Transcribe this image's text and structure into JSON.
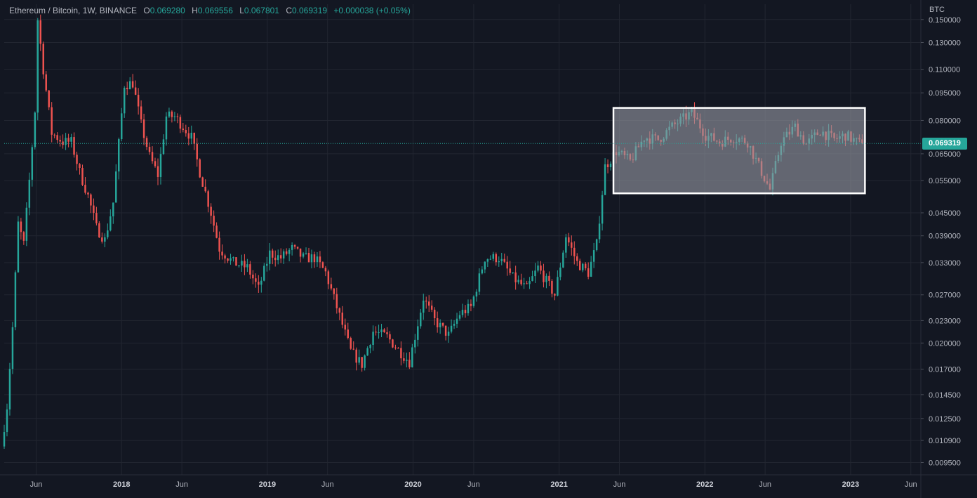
{
  "header": {
    "symbol": "Ethereum / Bitcoin, 1W, BINANCE",
    "o_label": "O",
    "o_value": "0.069280",
    "h_label": "H",
    "h_value": "0.069556",
    "l_label": "L",
    "l_value": "0.067801",
    "c_label": "C",
    "c_value": "0.069319",
    "change": "+0.000038 (+0.05%)"
  },
  "colors": {
    "background": "#131722",
    "up": "#26a69a",
    "down": "#ef5350",
    "grid": "#222631",
    "axis_text": "#b2b5be",
    "highlight_fill": "#9598a1",
    "highlight_border": "#ffffff"
  },
  "chart_data": {
    "type": "candlestick",
    "title": "Ethereum / Bitcoin, 1W, BINANCE",
    "interval": "1W",
    "exchange": "BINANCE",
    "y_unit": "BTC",
    "y_scale": "log",
    "ylim": [
      0.0088,
      0.165
    ],
    "xlim": [
      "2017-03-13",
      "2023-06-26"
    ],
    "grid": true,
    "last_price": "0.069319",
    "y_ticks": [
      "0.150000",
      "0.130000",
      "0.110000",
      "0.095000",
      "0.080000",
      "0.065000",
      "0.055000",
      "0.045000",
      "0.039000",
      "0.033000",
      "0.027000",
      "0.023000",
      "0.020000",
      "0.017000",
      "0.014500",
      "0.012500",
      "0.010900",
      "0.009500"
    ],
    "x_ticks": [
      {
        "label": "Jun",
        "date": "2017-06-01"
      },
      {
        "label": "2018",
        "date": "2018-01-01"
      },
      {
        "label": "Jun",
        "date": "2018-06-01"
      },
      {
        "label": "2019",
        "date": "2019-01-01"
      },
      {
        "label": "Jun",
        "date": "2019-06-01"
      },
      {
        "label": "2020",
        "date": "2020-01-01"
      },
      {
        "label": "Jun",
        "date": "2020-06-01"
      },
      {
        "label": "2021",
        "date": "2021-01-01"
      },
      {
        "label": "Jun",
        "date": "2021-06-01"
      },
      {
        "label": "2022",
        "date": "2022-01-01"
      },
      {
        "label": "Jun",
        "date": "2022-06-01"
      },
      {
        "label": "2023",
        "date": "2023-01-01"
      },
      {
        "label": "Jun",
        "date": "2023-06-01"
      }
    ],
    "trend_path": [
      [
        "2017-03-13",
        0.0105
      ],
      [
        "2017-03-27",
        0.0135
      ],
      [
        "2017-04-10",
        0.022
      ],
      [
        "2017-04-24",
        0.042
      ],
      [
        "2017-05-08",
        0.037
      ],
      [
        "2017-05-22",
        0.055
      ],
      [
        "2017-06-05",
        0.085
      ],
      [
        "2017-06-12",
        0.15
      ],
      [
        "2017-06-26",
        0.11
      ],
      [
        "2017-07-17",
        0.074
      ],
      [
        "2017-08-14",
        0.07
      ],
      [
        "2017-09-04",
        0.07
      ],
      [
        "2017-09-25",
        0.058
      ],
      [
        "2017-10-16",
        0.05
      ],
      [
        "2017-11-06",
        0.041
      ],
      [
        "2017-11-27",
        0.038
      ],
      [
        "2017-12-18",
        0.048
      ],
      [
        "2018-01-15",
        0.1
      ],
      [
        "2018-02-05",
        0.101
      ],
      [
        "2018-02-26",
        0.078
      ],
      [
        "2018-03-19",
        0.064
      ],
      [
        "2018-04-09",
        0.057
      ],
      [
        "2018-04-30",
        0.082
      ],
      [
        "2018-05-21",
        0.082
      ],
      [
        "2018-06-11",
        0.077
      ],
      [
        "2018-07-02",
        0.072
      ],
      [
        "2018-07-23",
        0.058
      ],
      [
        "2018-08-20",
        0.045
      ],
      [
        "2018-09-10",
        0.036
      ],
      [
        "2018-10-15",
        0.033
      ],
      [
        "2018-11-19",
        0.032
      ],
      [
        "2018-12-17",
        0.028
      ],
      [
        "2019-01-14",
        0.035
      ],
      [
        "2019-02-11",
        0.034
      ],
      [
        "2019-03-11",
        0.036
      ],
      [
        "2019-04-08",
        0.034
      ],
      [
        "2019-05-06",
        0.034
      ],
      [
        "2019-06-03",
        0.031
      ],
      [
        "2019-07-01",
        0.025
      ],
      [
        "2019-08-05",
        0.019
      ],
      [
        "2019-09-02",
        0.0175
      ],
      [
        "2019-09-30",
        0.0215
      ],
      [
        "2019-11-04",
        0.0208
      ],
      [
        "2019-12-02",
        0.0192
      ],
      [
        "2019-12-30",
        0.0178
      ],
      [
        "2020-02-03",
        0.0265
      ],
      [
        "2020-03-02",
        0.023
      ],
      [
        "2020-04-06",
        0.021
      ],
      [
        "2020-05-04",
        0.024
      ],
      [
        "2020-06-01",
        0.025
      ],
      [
        "2020-07-06",
        0.034
      ],
      [
        "2020-08-10",
        0.034
      ],
      [
        "2020-09-14",
        0.03
      ],
      [
        "2020-10-19",
        0.028
      ],
      [
        "2020-11-16",
        0.032
      ],
      [
        "2020-12-28",
        0.027
      ],
      [
        "2021-01-25",
        0.039
      ],
      [
        "2021-02-22",
        0.033
      ],
      [
        "2021-03-22",
        0.031
      ],
      [
        "2021-04-12",
        0.037
      ],
      [
        "2021-05-03",
        0.06
      ],
      [
        "2021-05-31",
        0.066
      ],
      [
        "2021-07-05",
        0.062
      ],
      [
        "2021-08-09",
        0.072
      ],
      [
        "2021-09-13",
        0.071
      ],
      [
        "2021-10-18",
        0.077
      ],
      [
        "2021-12-06",
        0.084
      ],
      [
        "2022-01-10",
        0.073
      ],
      [
        "2022-02-14",
        0.07
      ],
      [
        "2022-03-21",
        0.072
      ],
      [
        "2022-04-25",
        0.07
      ],
      [
        "2022-05-30",
        0.058
      ],
      [
        "2022-06-20",
        0.052
      ],
      [
        "2022-07-18",
        0.07
      ],
      [
        "2022-08-22",
        0.077
      ],
      [
        "2022-09-19",
        0.069
      ],
      [
        "2022-10-24",
        0.075
      ],
      [
        "2022-11-28",
        0.071
      ],
      [
        "2022-12-26",
        0.073
      ],
      [
        "2023-01-30",
        0.069319
      ]
    ],
    "highlight_range": {
      "x_start": "2021-05-17",
      "x_end": "2023-02-06",
      "y_low": 0.0508,
      "y_high": 0.0865
    }
  }
}
